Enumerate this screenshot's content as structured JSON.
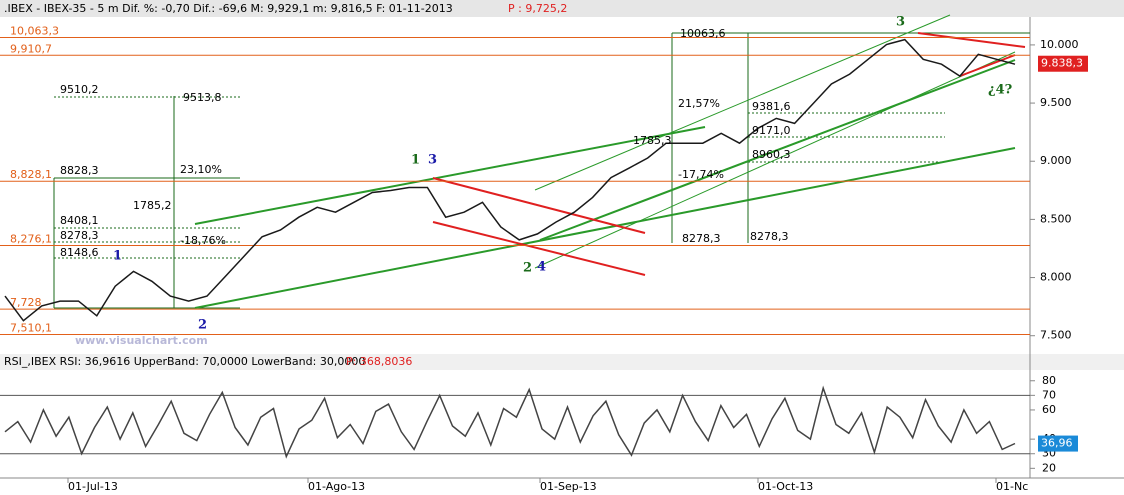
{
  "header": {
    "text": ".IBEX - IBEX-35 -  5 m Dif. %: -0,70 Dif.: -69,6 M: 9,929,1 m: 9,816,5 F: 01-11-2013",
    "price": "P : 9,725,2"
  },
  "watermark": "www.visualchart.com",
  "chart_data": [
    {
      "type": "line",
      "color": "#1a1a1a",
      "values": [
        7841,
        7629,
        7756,
        7798,
        7798,
        7671,
        7926,
        8053,
        7968,
        7841,
        7798,
        7841,
        8010,
        8180,
        8350,
        8409,
        8519,
        8604,
        8562,
        8647,
        8731,
        8748,
        8774,
        8774,
        8519,
        8562,
        8647,
        8435,
        8324,
        8375,
        8477,
        8562,
        8689,
        8859,
        8943,
        9028,
        9155,
        9155,
        9155,
        9240,
        9155,
        9283,
        9368,
        9325,
        9495,
        9664,
        9749,
        9876,
        10004,
        10046,
        9876,
        9834,
        9732,
        9919,
        9876,
        9834
      ],
      "ylim": [
        7360,
        10240
      ],
      "yticks": [
        {
          "value": 7500,
          "label": "7.500"
        },
        {
          "value": 8000,
          "label": "8.000"
        },
        {
          "value": 8500,
          "label": "8.500"
        },
        {
          "value": 9000,
          "label": "9.000"
        },
        {
          "value": 9500,
          "label": "9.500"
        },
        {
          "value": 10000,
          "label": "10.000"
        }
      ],
      "levels": [
        {
          "value": 10063.3,
          "label": "10,063,3"
        },
        {
          "value": 9910.7,
          "label": "9,910,7"
        },
        {
          "value": 8828.1,
          "label": "8,828,1"
        },
        {
          "value": 8276.1,
          "label": "8,276,1"
        },
        {
          "value": 7728.4,
          "label": "7,728"
        },
        {
          "value": 7510.1,
          "label": "7,510,1"
        }
      ],
      "level_color": "#e2601a",
      "last_price": {
        "value": 9838.3,
        "label": "9.838,3"
      },
      "annotations": [
        "9510,2",
        "9513,8",
        "8828,3",
        "23,10%",
        "1785,2",
        "8408,1",
        "8278,3",
        "-18,76%",
        "8148,6",
        "10063,6",
        "21,57%",
        "1785,3",
        "9381,6",
        "9171,0",
        "8960,3",
        "-17,74%",
        "8278,3",
        "8278,3"
      ],
      "wave_labels": [
        {
          "text": "1",
          "color": "#1a1aa8"
        },
        {
          "text": "2",
          "color": "#1a1aa8"
        },
        {
          "text": "1",
          "color": "#1a6a1a"
        },
        {
          "text": "3",
          "color": "#1a1aa8"
        },
        {
          "text": "2",
          "color": "#1a6a1a"
        },
        {
          "text": "4",
          "color": "#1a1aa8"
        },
        {
          "text": "3",
          "color": "#1a6a1a"
        },
        {
          "text": "¿4?",
          "color": "#1a6a1a"
        }
      ],
      "x_labels": [
        "01-Jul-13",
        "01-Ago-13",
        "01-Sep-13",
        "01-Oct-13",
        "01-Nc"
      ]
    },
    {
      "type": "line",
      "title": "RSI_,IBEX RSI: 36,9616 UpperBand: 70,0000 LowerBand: 30,0000",
      "title_price": "P: 368,8036",
      "color": "#444444",
      "values": [
        45,
        52,
        38,
        60,
        42,
        55,
        30,
        48,
        62,
        40,
        58,
        35,
        50,
        66,
        44,
        39,
        57,
        72,
        48,
        36,
        55,
        61,
        28,
        47,
        53,
        68,
        41,
        50,
        37,
        59,
        64,
        45,
        33,
        52,
        70,
        49,
        42,
        58,
        36,
        61,
        55,
        74,
        47,
        40,
        62,
        38,
        56,
        66,
        43,
        29,
        51,
        60,
        45,
        70,
        52,
        39,
        63,
        48,
        57,
        35,
        54,
        68,
        46,
        40,
        75,
        50,
        44,
        58,
        31,
        62,
        55,
        41,
        67,
        49,
        38,
        60,
        44,
        52,
        33,
        37
      ],
      "ylim": [
        12,
        86
      ],
      "yticks": [
        20,
        30,
        40,
        60,
        70,
        80
      ],
      "bands": [
        30,
        70
      ],
      "last_value": {
        "value": 36.96,
        "label": "36,96"
      }
    }
  ]
}
